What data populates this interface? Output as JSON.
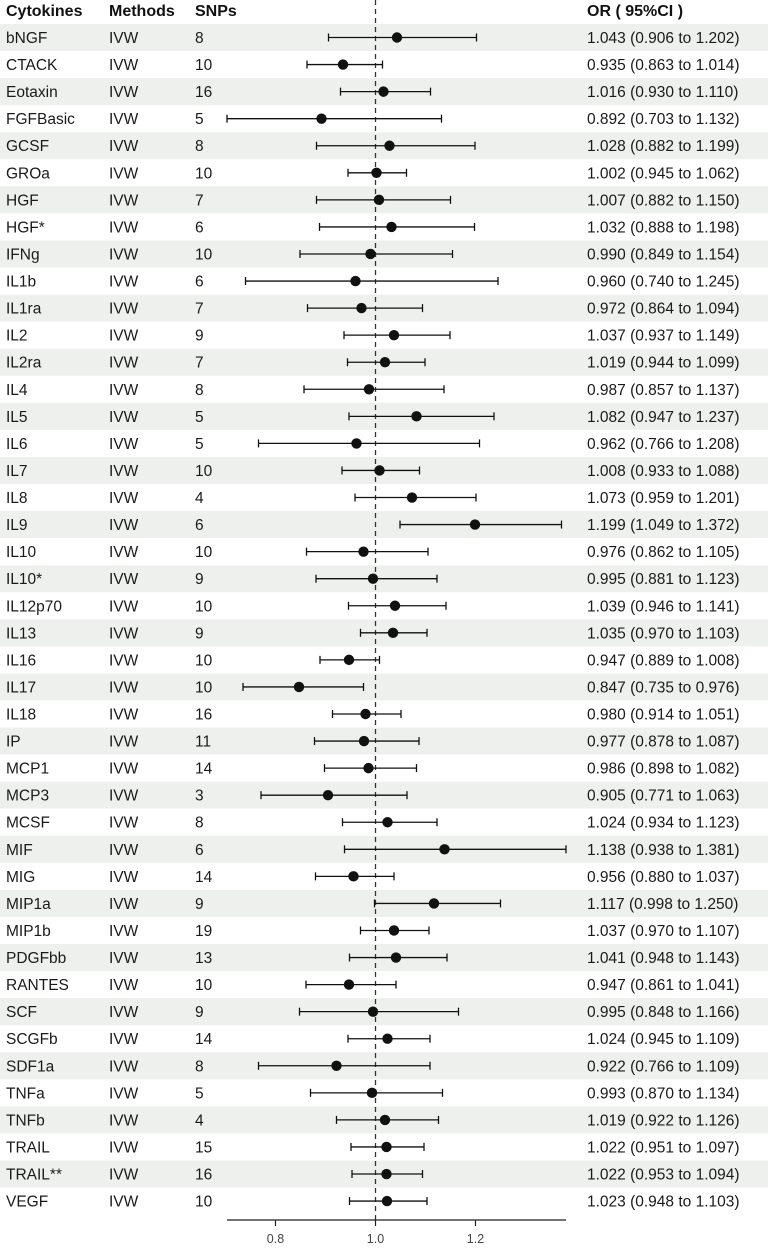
{
  "chart_data": {
    "type": "forest",
    "headers": {
      "name": "Cytokines",
      "method": "Methods",
      "snps": "SNPs",
      "or": "OR ( 95%CI )"
    },
    "rows": [
      {
        "name": "bNGF",
        "method": "IVW",
        "snps": "8",
        "or": 1.043,
        "lo": 0.906,
        "hi": 1.202,
        "label": "1.043 (0.906 to 1.202)"
      },
      {
        "name": "CTACK",
        "method": "IVW",
        "snps": "10",
        "or": 0.935,
        "lo": 0.863,
        "hi": 1.014,
        "label": "0.935 (0.863 to 1.014)"
      },
      {
        "name": "Eotaxin",
        "method": "IVW",
        "snps": "16",
        "or": 1.016,
        "lo": 0.93,
        "hi": 1.11,
        "label": "1.016 (0.930 to 1.110)"
      },
      {
        "name": "FGFBasic",
        "method": "IVW",
        "snps": "5",
        "or": 0.892,
        "lo": 0.703,
        "hi": 1.132,
        "label": "0.892 (0.703 to 1.132)"
      },
      {
        "name": "GCSF",
        "method": "IVW",
        "snps": "8",
        "or": 1.028,
        "lo": 0.882,
        "hi": 1.199,
        "label": "1.028 (0.882 to 1.199)"
      },
      {
        "name": "GROa",
        "method": "IVW",
        "snps": "10",
        "or": 1.002,
        "lo": 0.945,
        "hi": 1.062,
        "label": "1.002 (0.945 to 1.062)"
      },
      {
        "name": "HGF",
        "method": "IVW",
        "snps": "7",
        "or": 1.007,
        "lo": 0.882,
        "hi": 1.15,
        "label": "1.007 (0.882 to 1.150)"
      },
      {
        "name": "HGF*",
        "method": "IVW",
        "snps": "6",
        "or": 1.032,
        "lo": 0.888,
        "hi": 1.198,
        "label": "1.032 (0.888 to 1.198)"
      },
      {
        "name": "IFNg",
        "method": "IVW",
        "snps": "10",
        "or": 0.99,
        "lo": 0.849,
        "hi": 1.154,
        "label": "0.990 (0.849 to 1.154)"
      },
      {
        "name": "IL1b",
        "method": "IVW",
        "snps": "6",
        "or": 0.96,
        "lo": 0.74,
        "hi": 1.245,
        "label": "0.960 (0.740 to 1.245)"
      },
      {
        "name": "IL1ra",
        "method": "IVW",
        "snps": "7",
        "or": 0.972,
        "lo": 0.864,
        "hi": 1.094,
        "label": "0.972 (0.864 to 1.094)"
      },
      {
        "name": "IL2",
        "method": "IVW",
        "snps": "9",
        "or": 1.037,
        "lo": 0.937,
        "hi": 1.149,
        "label": "1.037 (0.937 to 1.149)"
      },
      {
        "name": "IL2ra",
        "method": "IVW",
        "snps": "7",
        "or": 1.019,
        "lo": 0.944,
        "hi": 1.099,
        "label": "1.019 (0.944 to 1.099)"
      },
      {
        "name": "IL4",
        "method": "IVW",
        "snps": "8",
        "or": 0.987,
        "lo": 0.857,
        "hi": 1.137,
        "label": "0.987 (0.857 to 1.137)"
      },
      {
        "name": "IL5",
        "method": "IVW",
        "snps": "5",
        "or": 1.082,
        "lo": 0.947,
        "hi": 1.237,
        "label": "1.082 (0.947 to 1.237)"
      },
      {
        "name": "IL6",
        "method": "IVW",
        "snps": "5",
        "or": 0.962,
        "lo": 0.766,
        "hi": 1.208,
        "label": "0.962 (0.766 to 1.208)"
      },
      {
        "name": "IL7",
        "method": "IVW",
        "snps": "10",
        "or": 1.008,
        "lo": 0.933,
        "hi": 1.088,
        "label": "1.008 (0.933 to 1.088)"
      },
      {
        "name": "IL8",
        "method": "IVW",
        "snps": "4",
        "or": 1.073,
        "lo": 0.959,
        "hi": 1.201,
        "label": "1.073 (0.959 to 1.201)"
      },
      {
        "name": "IL9",
        "method": "IVW",
        "snps": "6",
        "or": 1.199,
        "lo": 1.049,
        "hi": 1.372,
        "label": "1.199 (1.049 to 1.372)"
      },
      {
        "name": "IL10",
        "method": "IVW",
        "snps": "10",
        "or": 0.976,
        "lo": 0.862,
        "hi": 1.105,
        "label": "0.976 (0.862 to 1.105)"
      },
      {
        "name": "IL10*",
        "method": "IVW",
        "snps": "9",
        "or": 0.995,
        "lo": 0.881,
        "hi": 1.123,
        "label": "0.995 (0.881 to 1.123)"
      },
      {
        "name": "IL12p70",
        "method": "IVW",
        "snps": "10",
        "or": 1.039,
        "lo": 0.946,
        "hi": 1.141,
        "label": "1.039 (0.946 to 1.141)"
      },
      {
        "name": "IL13",
        "method": "IVW",
        "snps": "9",
        "or": 1.035,
        "lo": 0.97,
        "hi": 1.103,
        "label": "1.035 (0.970 to 1.103)"
      },
      {
        "name": "IL16",
        "method": "IVW",
        "snps": "10",
        "or": 0.947,
        "lo": 0.889,
        "hi": 1.008,
        "label": "0.947 (0.889 to 1.008)"
      },
      {
        "name": "IL17",
        "method": "IVW",
        "snps": "10",
        "or": 0.847,
        "lo": 0.735,
        "hi": 0.976,
        "label": "0.847 (0.735 to 0.976)"
      },
      {
        "name": "IL18",
        "method": "IVW",
        "snps": "16",
        "or": 0.98,
        "lo": 0.914,
        "hi": 1.051,
        "label": "0.980 (0.914 to 1.051)"
      },
      {
        "name": "IP",
        "method": "IVW",
        "snps": "11",
        "or": 0.977,
        "lo": 0.878,
        "hi": 1.087,
        "label": "0.977 (0.878 to 1.087)"
      },
      {
        "name": "MCP1",
        "method": "IVW",
        "snps": "14",
        "or": 0.986,
        "lo": 0.898,
        "hi": 1.082,
        "label": "0.986 (0.898 to 1.082)"
      },
      {
        "name": "MCP3",
        "method": "IVW",
        "snps": "3",
        "or": 0.905,
        "lo": 0.771,
        "hi": 1.063,
        "label": "0.905 (0.771 to 1.063)"
      },
      {
        "name": "MCSF",
        "method": "IVW",
        "snps": "8",
        "or": 1.024,
        "lo": 0.934,
        "hi": 1.123,
        "label": "1.024 (0.934 to 1.123)"
      },
      {
        "name": "MIF",
        "method": "IVW",
        "snps": "6",
        "or": 1.138,
        "lo": 0.938,
        "hi": 1.381,
        "label": "1.138 (0.938 to 1.381)"
      },
      {
        "name": "MIG",
        "method": "IVW",
        "snps": "14",
        "or": 0.956,
        "lo": 0.88,
        "hi": 1.037,
        "label": "0.956 (0.880 to 1.037)"
      },
      {
        "name": "MIP1a",
        "method": "IVW",
        "snps": "9",
        "or": 1.117,
        "lo": 0.998,
        "hi": 1.25,
        "label": "1.117 (0.998 to 1.250)"
      },
      {
        "name": "MIP1b",
        "method": "IVW",
        "snps": "19",
        "or": 1.037,
        "lo": 0.97,
        "hi": 1.107,
        "label": "1.037 (0.970 to 1.107)"
      },
      {
        "name": "PDGFbb",
        "method": "IVW",
        "snps": "13",
        "or": 1.041,
        "lo": 0.948,
        "hi": 1.143,
        "label": "1.041 (0.948 to 1.143)"
      },
      {
        "name": "RANTES",
        "method": "IVW",
        "snps": "10",
        "or": 0.947,
        "lo": 0.861,
        "hi": 1.041,
        "label": "0.947 (0.861 to 1.041)"
      },
      {
        "name": "SCF",
        "method": "IVW",
        "snps": "9",
        "or": 0.995,
        "lo": 0.848,
        "hi": 1.166,
        "label": "0.995 (0.848 to 1.166)"
      },
      {
        "name": "SCGFb",
        "method": "IVW",
        "snps": "14",
        "or": 1.024,
        "lo": 0.945,
        "hi": 1.109,
        "label": "1.024 (0.945 to 1.109)"
      },
      {
        "name": "SDF1a",
        "method": "IVW",
        "snps": "8",
        "or": 0.922,
        "lo": 0.766,
        "hi": 1.109,
        "label": "0.922 (0.766 to 1.109)"
      },
      {
        "name": "TNFa",
        "method": "IVW",
        "snps": "5",
        "or": 0.993,
        "lo": 0.87,
        "hi": 1.134,
        "label": "0.993 (0.870 to 1.134)"
      },
      {
        "name": "TNFb",
        "method": "IVW",
        "snps": "4",
        "or": 1.019,
        "lo": 0.922,
        "hi": 1.126,
        "label": "1.019 (0.922 to 1.126)"
      },
      {
        "name": "TRAIL",
        "method": "IVW",
        "snps": "15",
        "or": 1.022,
        "lo": 0.951,
        "hi": 1.097,
        "label": "1.022 (0.951 to 1.097)"
      },
      {
        "name": "TRAIL**",
        "method": "IVW",
        "snps": "16",
        "or": 1.022,
        "lo": 0.953,
        "hi": 1.094,
        "label": "1.022 (0.953 to 1.094)"
      },
      {
        "name": "VEGF",
        "method": "IVW",
        "snps": "10",
        "or": 1.023,
        "lo": 0.948,
        "hi": 1.103,
        "label": "1.023 (0.948 to 1.103)"
      }
    ],
    "reference_line": 1.0,
    "xlim": [
      0.703,
      1.381
    ],
    "xticks": [
      0.8,
      1.0,
      1.2
    ],
    "xtick_labels": [
      "0.8",
      "1.0",
      "1.2"
    ],
    "stripe_color": "#eef0ee",
    "marker_color": "#111111"
  }
}
